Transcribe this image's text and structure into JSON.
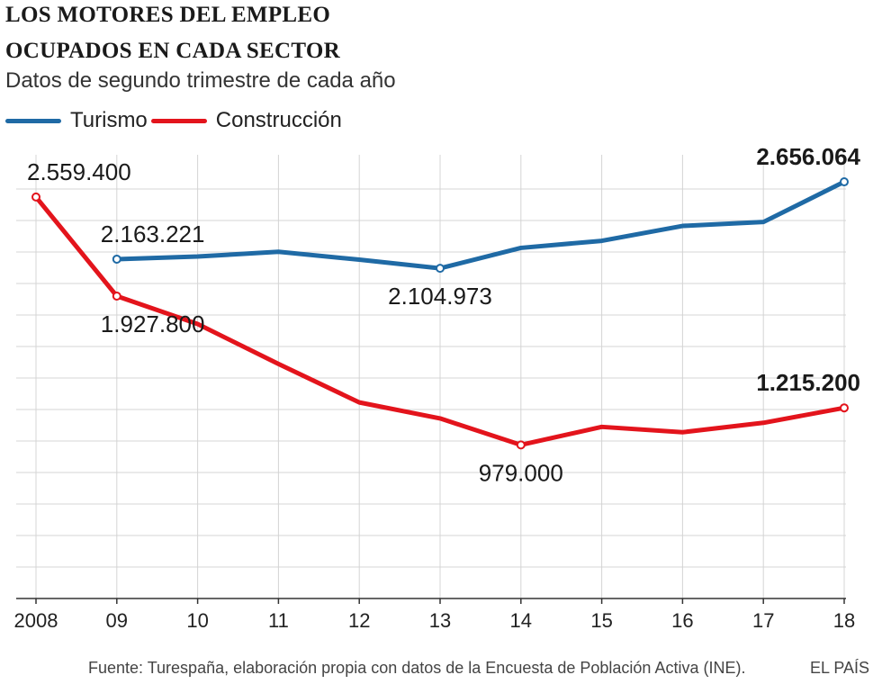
{
  "header": {
    "title": "LOS MOTORES DEL EMPLEO",
    "subtitle": "OCUPADOS EN CADA SECTOR",
    "note": "Datos de segundo trimestre de cada año"
  },
  "footer": {
    "source": "Fuente: Turespaña, elaboración propia con datos de la Encuesta de Población Activa (INE).",
    "brand": "EL PAÍS"
  },
  "chart_data": {
    "type": "line",
    "title": "OCUPADOS EN CADA SECTOR",
    "x": [
      "2008",
      "09",
      "10",
      "11",
      "12",
      "13",
      "14",
      "15",
      "16",
      "17",
      "18"
    ],
    "ylim": [
      0,
      2800000
    ],
    "grid": true,
    "legend_position": "top-left",
    "series": [
      {
        "name": "Turismo",
        "color": "#1f6aa5",
        "values": [
          null,
          2163221,
          2180000,
          2210000,
          2160000,
          2104973,
          2235000,
          2280000,
          2375000,
          2400000,
          2656064
        ]
      },
      {
        "name": "Construcción",
        "color": "#e3141c",
        "values": [
          2559400,
          1927800,
          1750000,
          1495000,
          1250000,
          1148000,
          979000,
          1094000,
          1060000,
          1120000,
          1215200
        ]
      }
    ],
    "annotations": [
      {
        "series": 1,
        "index": 0,
        "text": "2.559.400",
        "bold": false,
        "pos": "above"
      },
      {
        "series": 0,
        "index": 1,
        "text": "2.163.221",
        "bold": false,
        "pos": "above"
      },
      {
        "series": 1,
        "index": 1,
        "text": "1.927.800",
        "bold": false,
        "pos": "below"
      },
      {
        "series": 0,
        "index": 5,
        "text": "2.104.973",
        "bold": false,
        "pos": "below"
      },
      {
        "series": 1,
        "index": 6,
        "text": "979.000",
        "bold": false,
        "pos": "below"
      },
      {
        "series": 0,
        "index": 10,
        "text": "2.656.064",
        "bold": true,
        "pos": "above"
      },
      {
        "series": 1,
        "index": 10,
        "text": "1.215.200",
        "bold": true,
        "pos": "above"
      }
    ]
  }
}
